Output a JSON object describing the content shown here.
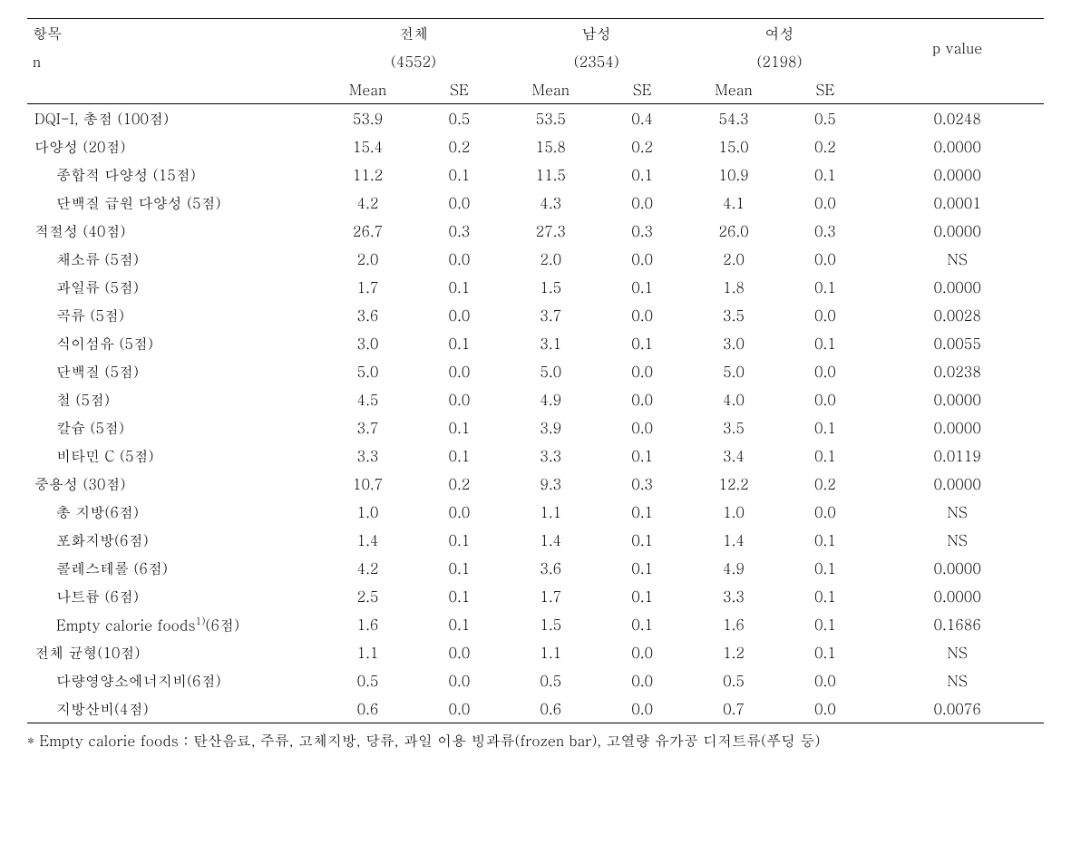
{
  "header": {
    "item_label": "항목",
    "n_label": "n",
    "groups": [
      {
        "name": "전체",
        "n": "(4552)"
      },
      {
        "name": "남성",
        "n": "(2354)"
      },
      {
        "name": "여성",
        "n": "(2198)"
      }
    ],
    "pvalue_label": "p value",
    "mean_label": "Mean",
    "se_label": "SE"
  },
  "rows": [
    {
      "indent": 1,
      "label": "DQI-I, 총점 (100점)",
      "vals": [
        "53.9",
        "0.5",
        "53.5",
        "0.4",
        "54.3",
        "0.5"
      ],
      "p": "0.0248"
    },
    {
      "indent": 1,
      "label": "다양성 (20점)",
      "vals": [
        "15.4",
        "0.2",
        "15.8",
        "0.2",
        "15.0",
        "0.2"
      ],
      "p": "0.0000"
    },
    {
      "indent": 2,
      "label": "종합적 다양성 (15점)",
      "vals": [
        "11.2",
        "0.1",
        "11.5",
        "0.1",
        "10.9",
        "0.1"
      ],
      "p": "0.0000"
    },
    {
      "indent": 2,
      "label": "단백질 급원 다양성 (5점)",
      "vals": [
        "4.2",
        "0.0",
        "4.3",
        "0.0",
        "4.1",
        "0.0"
      ],
      "p": "0.0001"
    },
    {
      "indent": 1,
      "label": "적절성 (40점)",
      "vals": [
        "26.7",
        "0.3",
        "27.3",
        "0.3",
        "26.0",
        "0.3"
      ],
      "p": "0.0000"
    },
    {
      "indent": 2,
      "label": "채소류 (5점)",
      "vals": [
        "2.0",
        "0.0",
        "2.0",
        "0.0",
        "2.0",
        "0.0"
      ],
      "p": "NS"
    },
    {
      "indent": 2,
      "label": "과일류 (5점)",
      "vals": [
        "1.7",
        "0.1",
        "1.5",
        "0.1",
        "1.8",
        "0.1"
      ],
      "p": "0.0000"
    },
    {
      "indent": 2,
      "label": "곡류 (5점)",
      "vals": [
        "3.6",
        "0.0",
        "3.7",
        "0.0",
        "3.5",
        "0.0"
      ],
      "p": "0.0028"
    },
    {
      "indent": 2,
      "label": "식이섬유 (5점)",
      "vals": [
        "3.0",
        "0.1",
        "3.1",
        "0.1",
        "3.0",
        "0.1"
      ],
      "p": "0.0055"
    },
    {
      "indent": 2,
      "label": "단백질 (5점)",
      "vals": [
        "5.0",
        "0.0",
        "5.0",
        "0.0",
        "5.0",
        "0.0"
      ],
      "p": "0.0238"
    },
    {
      "indent": 2,
      "label": "철 (5점)",
      "vals": [
        "4.5",
        "0.0",
        "4.9",
        "0.0",
        "4.0",
        "0.0"
      ],
      "p": "0.0000"
    },
    {
      "indent": 2,
      "label": "칼슘 (5점)",
      "vals": [
        "3.7",
        "0.1",
        "3.9",
        "0.0",
        "3.5",
        "0.1"
      ],
      "p": "0.0000"
    },
    {
      "indent": 2,
      "label": "비타민 C (5점)",
      "vals": [
        "3.3",
        "0.1",
        "3.3",
        "0.1",
        "3.4",
        "0.1"
      ],
      "p": "0.0119"
    },
    {
      "indent": 1,
      "label": "중용성 (30점)",
      "vals": [
        "10.7",
        "0.2",
        "9.3",
        "0.3",
        "12.2",
        "0.2"
      ],
      "p": "0.0000"
    },
    {
      "indent": 2,
      "label": "총 지방(6점)",
      "vals": [
        "1.0",
        "0.0",
        "1.1",
        "0.1",
        "1.0",
        "0.0"
      ],
      "p": "NS"
    },
    {
      "indent": 2,
      "label": "포화지방(6점)",
      "vals": [
        "1.4",
        "0.1",
        "1.4",
        "0.1",
        "1.4",
        "0.1"
      ],
      "p": "NS"
    },
    {
      "indent": 2,
      "label": "콜레스테롤 (6점)",
      "vals": [
        "4.2",
        "0.1",
        "3.6",
        "0.1",
        "4.9",
        "0.1"
      ],
      "p": "0.0000"
    },
    {
      "indent": 2,
      "label": "나트륨 (6점)",
      "vals": [
        "2.5",
        "0.1",
        "1.7",
        "0.1",
        "3.3",
        "0.1"
      ],
      "p": "0.0000"
    },
    {
      "indent": 2,
      "label_html": "Empty calorie foods<sup>1)</sup>(6점)",
      "label": "Empty calorie foods1)(6점)",
      "vals": [
        "1.6",
        "0.1",
        "1.5",
        "0.1",
        "1.6",
        "0.1"
      ],
      "p": "0.1686"
    },
    {
      "indent": 1,
      "label": "전체 균형(10점)",
      "vals": [
        "1.1",
        "0.0",
        "1.1",
        "0.0",
        "1.2",
        "0.1"
      ],
      "p": "NS"
    },
    {
      "indent": 2,
      "label": "다량영양소에너지비(6점)",
      "vals": [
        "0.5",
        "0.0",
        "0.5",
        "0.0",
        "0.5",
        "0.0"
      ],
      "p": "NS"
    },
    {
      "indent": 2,
      "label": "지방산비(4점)",
      "vals": [
        "0.6",
        "0.0",
        "0.6",
        "0.0",
        "0.7",
        "0.0"
      ],
      "p": "0.0076"
    }
  ],
  "footnote": "* Empty calorie foods : 탄산음료, 주류, 고체지방, 당류, 과일 이용 빙과류(frozen bar), 고열량 유가공 디저트류(푸딩 등)"
}
